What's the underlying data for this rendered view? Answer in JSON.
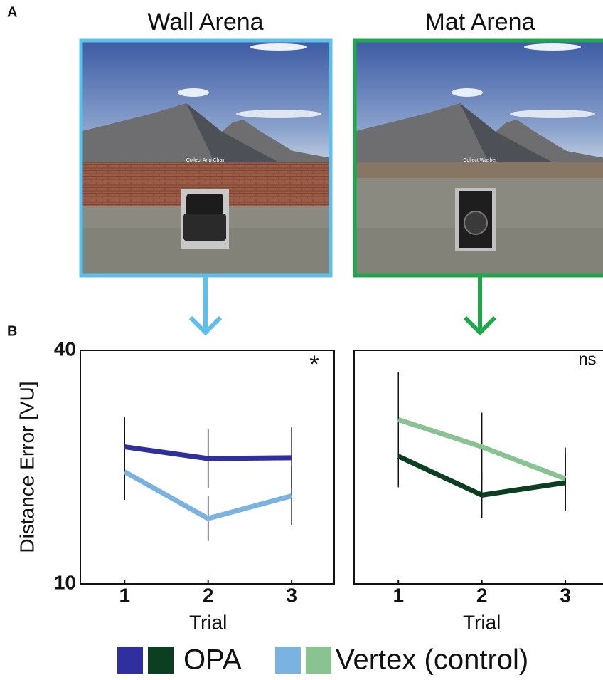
{
  "panel_labels": [
    "A",
    "B"
  ],
  "panels": [
    {
      "title": "Wall Arena",
      "caption": "Collect Arm Chair",
      "color": "#5bc0eb"
    },
    {
      "title": "Mat Arena",
      "caption": "Collect Washer",
      "color": "#1ea84b"
    }
  ],
  "chart_data": [
    {
      "type": "line",
      "annotation": "*",
      "xlabel": "Trial",
      "ylabel": "Distance Error [VU]",
      "x": [
        1,
        2,
        3
      ],
      "xlim": [
        0.47,
        3.51
      ],
      "xticks": [
        1,
        2,
        3
      ],
      "ylim": [
        10,
        40
      ],
      "yticks": [
        10,
        40
      ],
      "series": [
        {
          "name": "OPA",
          "color": "#2f2f9f",
          "values": [
            27.6,
            26.1,
            26.2
          ],
          "errors": [
            3.9,
            3.8,
            3.9
          ]
        },
        {
          "name": "Vertex (control)",
          "color": "#7ab2e2",
          "values": [
            24.4,
            18.4,
            21.3
          ],
          "errors": [
            3.6,
            2.9,
            3.8
          ]
        }
      ]
    },
    {
      "type": "line",
      "annotation": "ns",
      "xlabel": "Trial",
      "x": [
        1,
        2,
        3
      ],
      "xlim": [
        0.47,
        3.51
      ],
      "xticks": [
        1,
        2,
        3
      ],
      "ylim": [
        10,
        40
      ],
      "series": [
        {
          "color": "#0c3f22",
          "values": [
            26.4,
            21.4,
            23.0
          ],
          "errors": [
            4.0,
            2.9,
            3.6
          ]
        },
        {
          "color": "#88c391",
          "values": [
            31.1,
            27.6,
            23.5
          ],
          "errors": [
            6.1,
            4.4,
            4.0
          ]
        }
      ]
    }
  ]
}
